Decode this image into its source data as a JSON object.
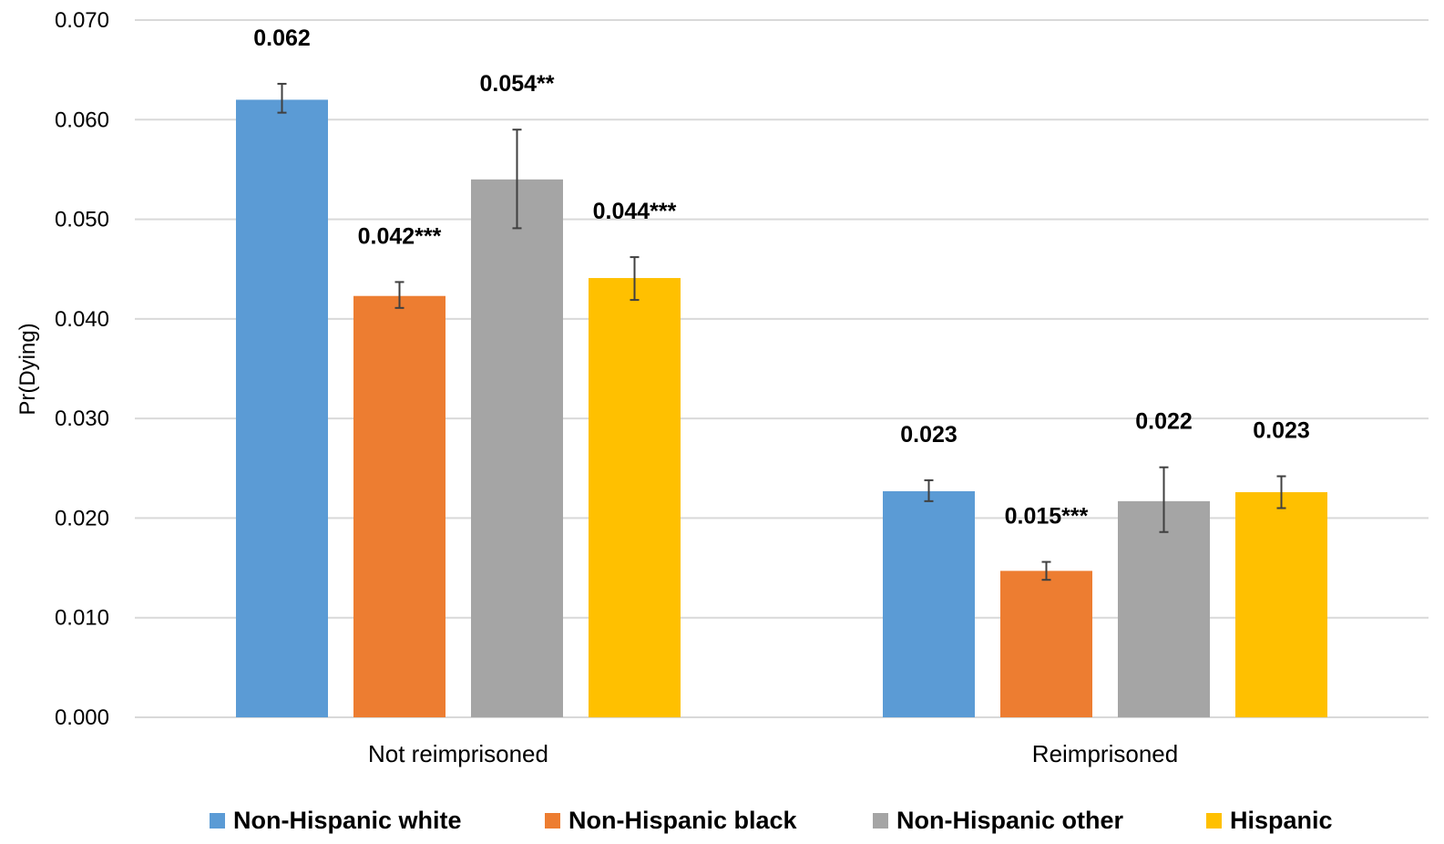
{
  "chart_data": {
    "type": "bar",
    "title": "",
    "xlabel": "",
    "ylabel": "Pr(Dying)",
    "ylim": [
      0,
      0.07
    ],
    "yticks": [
      "0.000",
      "0.010",
      "0.020",
      "0.030",
      "0.040",
      "0.050",
      "0.060",
      "0.070"
    ],
    "categories": [
      "Not reimprisoned",
      "Reimprisoned"
    ],
    "grid": true,
    "legend_position": "bottom",
    "series": [
      {
        "name": "Non-Hispanic white",
        "color": "#5b9bd5",
        "values": [
          0.062,
          0.0227
        ],
        "error_low": [
          0.0607,
          0.0217
        ],
        "error_high": [
          0.0636,
          0.0238
        ],
        "labels": [
          "0.062",
          "0.023"
        ]
      },
      {
        "name": "Non-Hispanic black",
        "color": "#ed7d31",
        "values": [
          0.0423,
          0.0147
        ],
        "error_low": [
          0.0411,
          0.0138
        ],
        "error_high": [
          0.0437,
          0.0156
        ],
        "labels": [
          "0.042***",
          "0.015***"
        ]
      },
      {
        "name": "Non-Hispanic other",
        "color": "#a5a5a5",
        "values": [
          0.054,
          0.0217
        ],
        "error_low": [
          0.0491,
          0.0186
        ],
        "error_high": [
          0.059,
          0.0251
        ],
        "labels": [
          "0.054**",
          "0.022"
        ]
      },
      {
        "name": "Hispanic",
        "color": "#ffc000",
        "values": [
          0.0441,
          0.0226
        ],
        "error_low": [
          0.0419,
          0.021
        ],
        "error_high": [
          0.0462,
          0.0242
        ],
        "labels": [
          "0.044***",
          "0.023"
        ]
      }
    ]
  }
}
